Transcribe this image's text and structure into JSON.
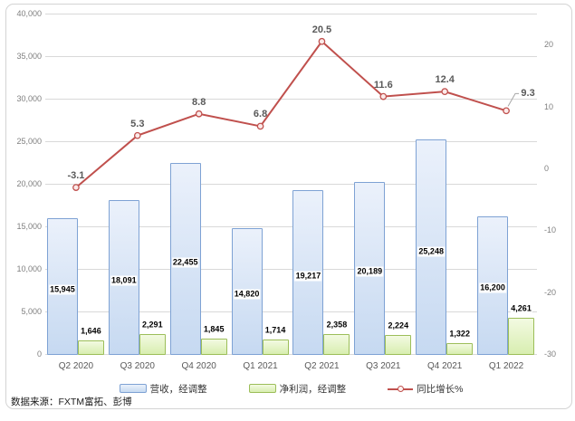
{
  "source_note": "数据来源：FXTM富拓、彭博",
  "chart_data": {
    "type": "combo",
    "title": "",
    "grid": true,
    "legend_position": "bottom",
    "categories": [
      "Q2 2020",
      "Q3 2020",
      "Q4 2020",
      "Q1 2021",
      "Q2 2021",
      "Q3 2021",
      "Q4 2021",
      "Q1 2022"
    ],
    "series": [
      {
        "name": "营收，经调整",
        "type": "bar",
        "axis": "left",
        "values": [
          15945,
          18091,
          22455,
          14820,
          19217,
          20189,
          25248,
          16200
        ],
        "labels": [
          "15,945",
          "18,091",
          "22,455",
          "14,820",
          "19,217",
          "20,189",
          "25,248",
          "16,200"
        ],
        "fill_top": "#ebf1fb",
        "fill_bottom": "#c6d9f1",
        "border": "#7ea2d4"
      },
      {
        "name": "净利润，经调整",
        "type": "bar",
        "axis": "left",
        "values": [
          1646,
          2291,
          1845,
          1714,
          2358,
          2224,
          1322,
          4261
        ],
        "labels": [
          "1,646",
          "2,291",
          "1,845",
          "1,714",
          "2,358",
          "2,224",
          "1,322",
          "4,261"
        ],
        "fill_top": "#f3fae2",
        "fill_bottom": "#d8eeb0",
        "border": "#9cbe59"
      },
      {
        "name": "同比增长%",
        "type": "line",
        "axis": "right",
        "values": [
          -3.1,
          5.3,
          8.8,
          6.8,
          20.5,
          11.6,
          12.4,
          9.3
        ],
        "labels": [
          "-3.1",
          "5.3",
          "8.8",
          "6.8",
          "20.5",
          "11.6",
          "12.4",
          "9.3"
        ],
        "color": "#c0504d",
        "marker_fill": "#fbeae9",
        "leader_color": "#a6a6a6"
      }
    ],
    "left_axis": {
      "min": 0,
      "max": 40000,
      "step": 5000,
      "tick_labels": [
        "0",
        "5,000",
        "10,000",
        "15,000",
        "20,000",
        "25,000",
        "30,000",
        "35,000",
        "40,000"
      ]
    },
    "right_axis": {
      "min": -30,
      "max": 25,
      "tick_values": [
        20,
        10,
        0,
        -10,
        -20,
        -30
      ],
      "tick_labels": [
        "20",
        "10",
        "0",
        "-10",
        "-20",
        "-30"
      ]
    }
  }
}
